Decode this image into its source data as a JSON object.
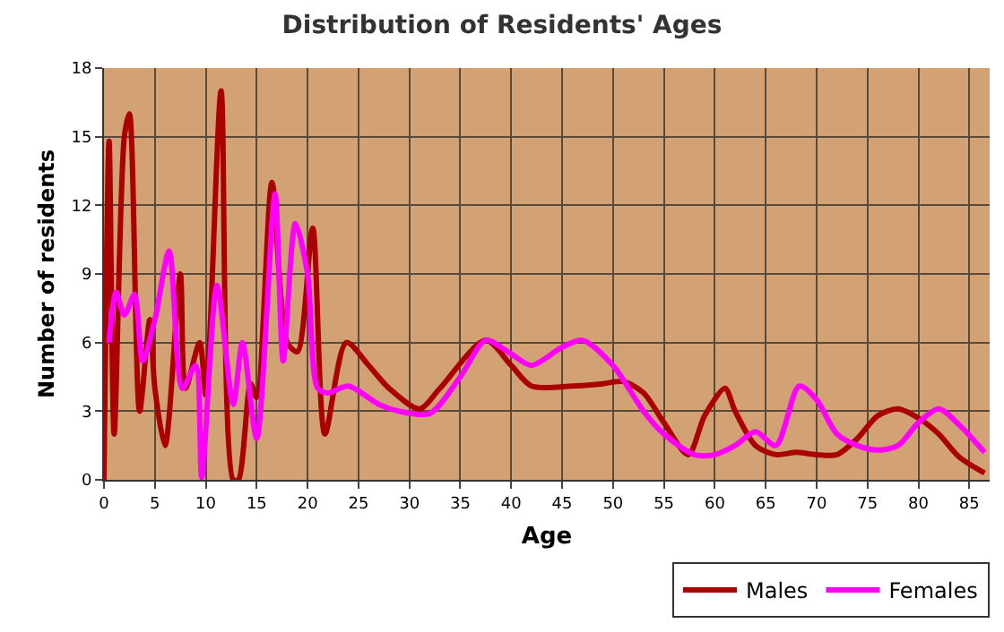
{
  "chart_data": {
    "type": "line",
    "title": "Distribution of Residents' Ages",
    "xlabel": "Age",
    "ylabel": "Number of residents",
    "xlim": [
      0,
      87
    ],
    "xticks": [
      0,
      5,
      10,
      15,
      20,
      25,
      30,
      35,
      40,
      45,
      50,
      55,
      60,
      65,
      70,
      75,
      80,
      85
    ],
    "ylim": [
      0,
      18
    ],
    "yticks": [
      0,
      3,
      6,
      9,
      12,
      15,
      18
    ],
    "grid": true,
    "legend": "bottom right",
    "line_style": "solid",
    "series": [
      {
        "name": "Males",
        "color": "#aa0000",
        "x": [
          0,
          0.5,
          1,
          2,
          2.5,
          3.5,
          4.5,
          5,
          6,
          7.5,
          8,
          9.4,
          10,
          11.5,
          12.7,
          13.2,
          14.4,
          15,
          16.5,
          18,
          19,
          20.5,
          21.7,
          23.8,
          26,
          28,
          31,
          33,
          37.5,
          40,
          42,
          46,
          49,
          51,
          53,
          55,
          57.4,
          59,
          61,
          62,
          64,
          66,
          68,
          70,
          72,
          74,
          76,
          78,
          80,
          82,
          84,
          86.5
        ],
        "values": [
          0,
          14.8,
          2,
          15,
          16,
          3,
          7,
          4,
          1.5,
          9,
          4,
          6,
          3.7,
          17,
          0,
          0,
          4.2,
          3.6,
          13,
          6,
          5.6,
          11,
          2,
          6,
          5,
          4,
          3.1,
          4,
          6.1,
          5,
          4.1,
          4.1,
          4.2,
          4.3,
          3.8,
          2.5,
          1.1,
          2.8,
          4,
          3,
          1.5,
          1.1,
          1.2,
          1.1,
          1.1,
          1.8,
          2.8,
          3.1,
          2.7,
          2,
          1,
          0.3
        ]
      },
      {
        "name": "Females",
        "color": "#ff00ff",
        "x": [
          0.5,
          1.2,
          2,
          3,
          3.8,
          5,
          6.4,
          7.7,
          9,
          9.6,
          11.1,
          12.7,
          13.6,
          15,
          16.8,
          17.6,
          18.8,
          20,
          21,
          22,
          24,
          27,
          29,
          32,
          35,
          37.5,
          40,
          42,
          45,
          47,
          50,
          53,
          55,
          58,
          60,
          62,
          64,
          66,
          68.3,
          70,
          72,
          74,
          76,
          78,
          80,
          82,
          84,
          86.5
        ],
        "values": [
          6,
          8.2,
          7.2,
          8.1,
          5.2,
          7,
          10,
          4,
          5,
          0.1,
          8.5,
          3.3,
          6,
          1.8,
          12.5,
          5.2,
          11.2,
          9,
          4,
          3.8,
          4.1,
          3.3,
          3,
          2.9,
          4.5,
          6.1,
          5.5,
          5,
          5.8,
          6.1,
          5,
          3,
          2,
          1.1,
          1.1,
          1.5,
          2.1,
          1.5,
          4.1,
          3.5,
          2,
          1.5,
          1.3,
          1.5,
          2.5,
          3.1,
          2.4,
          1.2
        ]
      }
    ]
  }
}
